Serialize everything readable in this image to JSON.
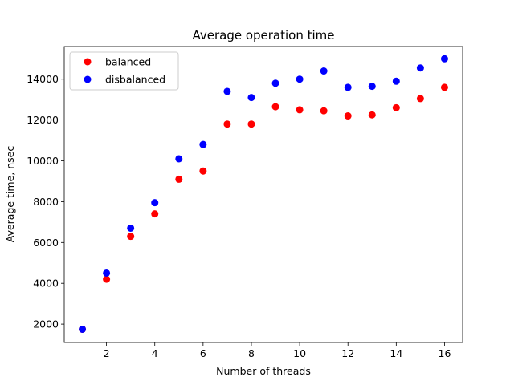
{
  "chart_data": {
    "type": "scatter",
    "title": "Average operation time",
    "xlabel": "Number of threads",
    "ylabel": "Average time, nsec",
    "xlim": [
      0.25,
      16.75
    ],
    "ylim": [
      1100,
      15600
    ],
    "xticks": [
      2,
      4,
      6,
      8,
      10,
      12,
      14,
      16
    ],
    "yticks": [
      2000,
      4000,
      6000,
      8000,
      10000,
      12000,
      14000
    ],
    "grid": false,
    "legend_position": "upper-left",
    "series": [
      {
        "name": "balanced",
        "color": "#ff0000",
        "x": [
          1,
          2,
          3,
          4,
          5,
          6,
          7,
          8,
          9,
          10,
          11,
          12,
          13,
          14,
          15,
          16
        ],
        "y": [
          1750,
          4200,
          6300,
          7400,
          9100,
          9500,
          11800,
          11800,
          12650,
          12500,
          12450,
          12200,
          12250,
          12600,
          13050,
          13600
        ]
      },
      {
        "name": "disbalanced",
        "color": "#0000ff",
        "x": [
          1,
          2,
          3,
          4,
          5,
          6,
          7,
          8,
          9,
          10,
          11,
          12,
          13,
          14,
          15,
          16
        ],
        "y": [
          1750,
          4500,
          6700,
          7950,
          10100,
          10800,
          13400,
          13100,
          13800,
          14000,
          14400,
          13600,
          13650,
          13900,
          14550,
          15000
        ]
      }
    ]
  }
}
